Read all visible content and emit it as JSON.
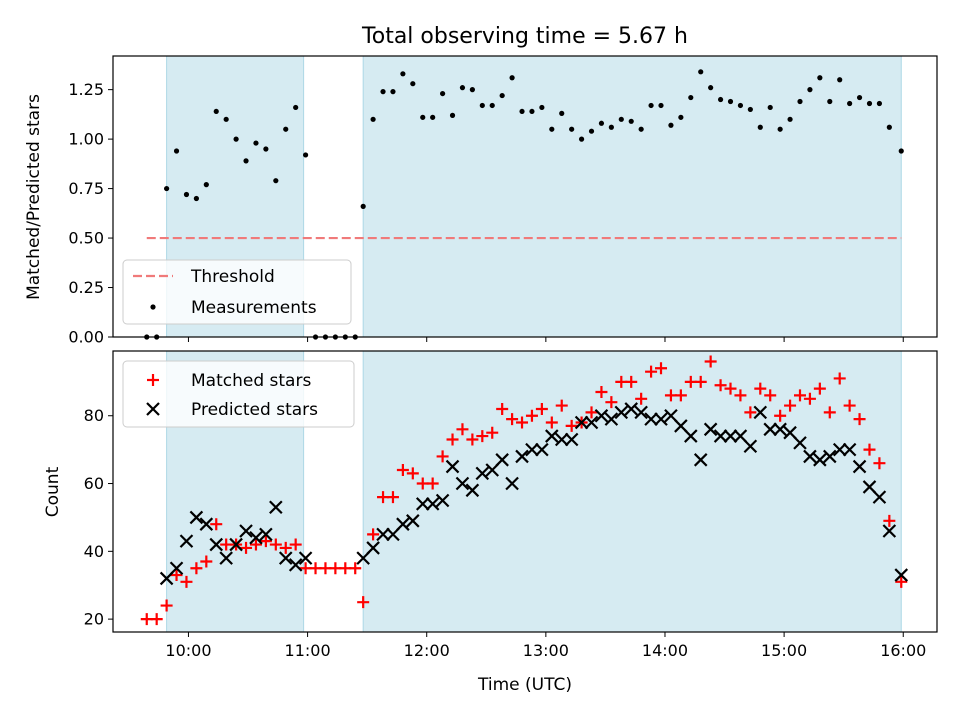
{
  "chart_data": [
    {
      "type": "scatter",
      "title": "Total observing time = 5.67 h",
      "xlabel": "",
      "ylabel": "Matched/Predicted stars",
      "xlim": [
        "09:22",
        "16:17"
      ],
      "ylim": [
        0,
        1.42
      ],
      "yticks": [
        "0.00",
        "0.25",
        "0.50",
        "0.75",
        "1.00",
        "1.25"
      ],
      "grid": false,
      "legend": "lower-left",
      "observing_windows": [
        [
          "09:49",
          "10:58"
        ],
        [
          "11:28",
          "15:59"
        ]
      ],
      "series": [
        {
          "name": "Threshold",
          "style": "dashed-line",
          "color": "#f07a7a",
          "x": [
            "09:39",
            "15:59"
          ],
          "y": [
            0.5,
            0.5
          ]
        },
        {
          "name": "Measurements",
          "style": "dot",
          "color": "#000000",
          "x": [
            "09:39",
            "09:44",
            "09:49",
            "09:54",
            "09:59",
            "10:04",
            "10:09",
            "10:14",
            "10:19",
            "10:24",
            "10:29",
            "10:34",
            "10:39",
            "10:44",
            "10:49",
            "10:54",
            "10:59",
            "11:04",
            "11:09",
            "11:14",
            "11:19",
            "11:24",
            "11:28",
            "11:33",
            "11:38",
            "11:43",
            "11:48",
            "11:53",
            "11:58",
            "12:03",
            "12:08",
            "12:13",
            "12:18",
            "12:23",
            "12:28",
            "12:33",
            "12:38",
            "12:43",
            "12:48",
            "12:53",
            "12:58",
            "13:03",
            "13:08",
            "13:13",
            "13:18",
            "13:23",
            "13:28",
            "13:33",
            "13:38",
            "13:43",
            "13:48",
            "13:53",
            "13:58",
            "14:03",
            "14:08",
            "14:13",
            "14:18",
            "14:23",
            "14:28",
            "14:33",
            "14:38",
            "14:43",
            "14:48",
            "14:53",
            "14:58",
            "15:03",
            "15:08",
            "15:13",
            "15:18",
            "15:23",
            "15:28",
            "15:33",
            "15:38",
            "15:43",
            "15:48",
            "15:53",
            "15:59"
          ],
          "y": [
            0.0,
            0.0,
            0.75,
            0.94,
            0.72,
            0.7,
            0.77,
            1.14,
            1.1,
            1.0,
            0.89,
            0.98,
            0.95,
            0.79,
            1.05,
            1.16,
            0.92,
            0.0,
            0.0,
            0.0,
            0.0,
            0.0,
            0.66,
            1.1,
            1.24,
            1.24,
            1.33,
            1.28,
            1.11,
            1.11,
            1.23,
            1.12,
            1.26,
            1.25,
            1.17,
            1.17,
            1.22,
            1.31,
            1.14,
            1.14,
            1.16,
            1.05,
            1.13,
            1.05,
            1.0,
            1.04,
            1.08,
            1.06,
            1.1,
            1.09,
            1.05,
            1.17,
            1.17,
            1.07,
            1.11,
            1.21,
            1.34,
            1.26,
            1.2,
            1.19,
            1.17,
            1.15,
            1.06,
            1.16,
            1.05,
            1.1,
            1.19,
            1.25,
            1.31,
            1.19,
            1.3,
            1.18,
            1.21,
            1.18,
            1.18,
            1.06,
            0.94
          ]
        }
      ]
    },
    {
      "type": "scatter",
      "title": "",
      "xlabel": "Time (UTC)",
      "ylabel": "Count",
      "xlim": [
        "09:22",
        "16:17"
      ],
      "xticks": [
        "10:00",
        "11:00",
        "12:00",
        "13:00",
        "14:00",
        "15:00",
        "16:00"
      ],
      "ylim": [
        16.2,
        99.1
      ],
      "yticks": [
        "20",
        "40",
        "60",
        "80"
      ],
      "grid": false,
      "legend": "top-left",
      "observing_windows": [
        [
          "09:49",
          "10:58"
        ],
        [
          "11:28",
          "15:59"
        ]
      ],
      "series": [
        {
          "name": "Matched stars",
          "marker": "plus",
          "color": "#ff0000",
          "x": [
            "09:39",
            "09:44",
            "09:49",
            "09:54",
            "09:59",
            "10:04",
            "10:09",
            "10:14",
            "10:19",
            "10:24",
            "10:29",
            "10:34",
            "10:39",
            "10:44",
            "10:49",
            "10:54",
            "10:59",
            "11:04",
            "11:09",
            "11:14",
            "11:19",
            "11:24",
            "11:28",
            "11:33",
            "11:38",
            "11:43",
            "11:48",
            "11:53",
            "11:58",
            "12:03",
            "12:08",
            "12:13",
            "12:18",
            "12:23",
            "12:28",
            "12:33",
            "12:38",
            "12:43",
            "12:48",
            "12:53",
            "12:58",
            "13:03",
            "13:08",
            "13:13",
            "13:18",
            "13:23",
            "13:28",
            "13:33",
            "13:38",
            "13:43",
            "13:48",
            "13:53",
            "13:58",
            "14:03",
            "14:08",
            "14:13",
            "14:18",
            "14:23",
            "14:28",
            "14:33",
            "14:38",
            "14:43",
            "14:48",
            "14:53",
            "14:58",
            "15:03",
            "15:08",
            "15:13",
            "15:18",
            "15:23",
            "15:28",
            "15:33",
            "15:38",
            "15:43",
            "15:48",
            "15:53",
            "15:59"
          ],
          "y": [
            20,
            20,
            24,
            33,
            31,
            35,
            37,
            48,
            42,
            42,
            41,
            42,
            43,
            42,
            41,
            42,
            35,
            35,
            35,
            35,
            35,
            35,
            25,
            45,
            56,
            56,
            64,
            63,
            60,
            60,
            68,
            73,
            76,
            73,
            74,
            75,
            82,
            79,
            78,
            80,
            82,
            78,
            83,
            77,
            78,
            81,
            87,
            84,
            90,
            90,
            85,
            93,
            94,
            86,
            86,
            90,
            90,
            96,
            89,
            88,
            86,
            81,
            88,
            86,
            80,
            83,
            86,
            85,
            88,
            81,
            91,
            83,
            79,
            70,
            66,
            49,
            31
          ]
        },
        {
          "name": "Predicted stars",
          "marker": "x",
          "color": "#000000",
          "x": [
            "09:49",
            "09:54",
            "09:59",
            "10:04",
            "10:09",
            "10:14",
            "10:19",
            "10:24",
            "10:29",
            "10:34",
            "10:39",
            "10:44",
            "10:49",
            "10:54",
            "10:59",
            "11:28",
            "11:33",
            "11:38",
            "11:43",
            "11:48",
            "11:53",
            "11:58",
            "12:03",
            "12:08",
            "12:13",
            "12:18",
            "12:23",
            "12:28",
            "12:33",
            "12:38",
            "12:43",
            "12:48",
            "12:53",
            "12:58",
            "13:03",
            "13:08",
            "13:13",
            "13:18",
            "13:23",
            "13:28",
            "13:33",
            "13:38",
            "13:43",
            "13:48",
            "13:53",
            "13:58",
            "14:03",
            "14:08",
            "14:13",
            "14:18",
            "14:23",
            "14:28",
            "14:33",
            "14:38",
            "14:43",
            "14:48",
            "14:53",
            "14:58",
            "15:03",
            "15:08",
            "15:13",
            "15:18",
            "15:23",
            "15:28",
            "15:33",
            "15:38",
            "15:43",
            "15:48",
            "15:53",
            "15:59"
          ],
          "y": [
            32,
            35,
            43,
            50,
            48,
            42,
            38,
            42,
            46,
            44,
            45,
            53,
            38,
            36,
            38,
            38,
            41,
            45,
            45,
            48,
            49,
            54,
            54,
            55,
            65,
            60,
            58,
            63,
            64,
            67,
            60,
            68,
            70,
            70,
            74,
            73,
            73,
            78,
            78,
            80,
            79,
            81,
            82,
            81,
            79,
            79,
            80,
            77,
            74,
            67,
            76,
            74,
            74,
            74,
            71,
            81,
            76,
            76,
            75,
            72,
            68,
            67,
            68,
            70,
            70,
            65,
            59,
            56,
            46,
            33
          ]
        }
      ]
    }
  ]
}
